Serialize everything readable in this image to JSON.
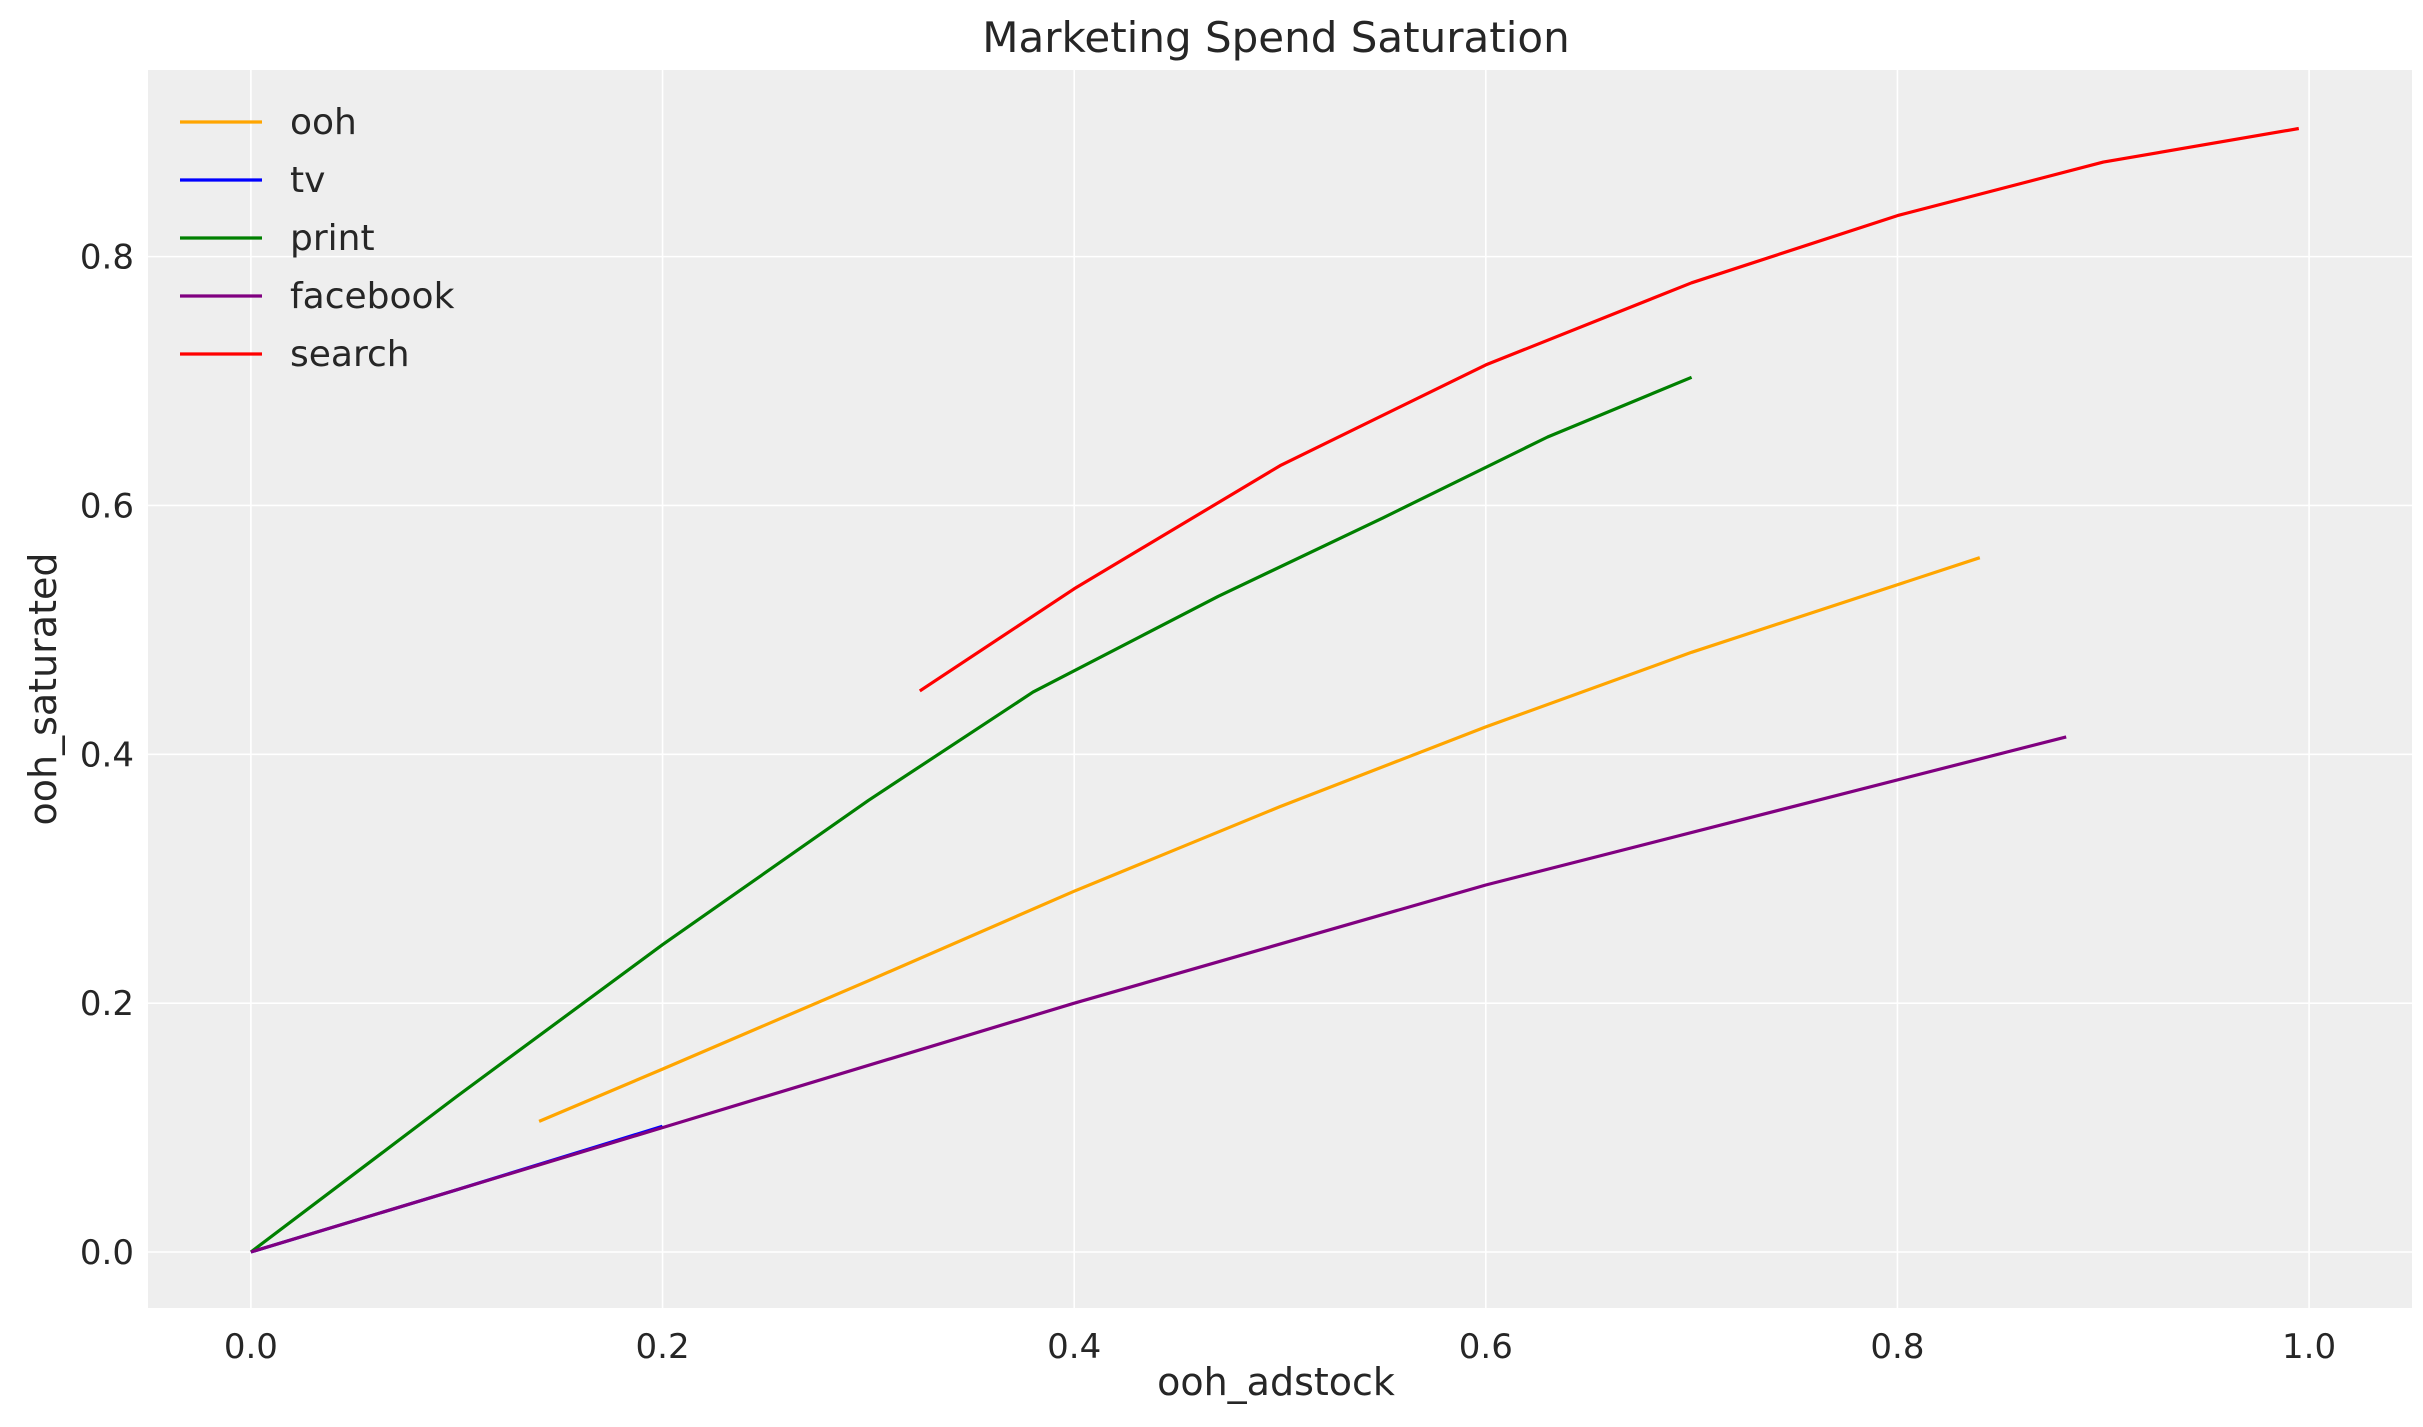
{
  "chart_data": {
    "type": "line",
    "title": "Marketing Spend Saturation",
    "xlabel": "ooh_adstock",
    "ylabel": "ooh_saturated",
    "xlim": [
      -0.05,
      1.05
    ],
    "ylim": [
      -0.045,
      0.95
    ],
    "xticks": [
      0.0,
      0.2,
      0.4,
      0.6,
      0.8,
      1.0
    ],
    "xtick_labels": [
      "0.0",
      "0.2",
      "0.4",
      "0.6",
      "0.8",
      "1.0"
    ],
    "yticks": [
      0.0,
      0.2,
      0.4,
      0.6,
      0.8
    ],
    "ytick_labels": [
      "0.0",
      "0.2",
      "0.4",
      "0.6",
      "0.8"
    ],
    "grid": true,
    "legend_position": "top-left",
    "background_color": "#eeeeee",
    "series": [
      {
        "name": "ooh",
        "color": "#ffa500",
        "x": [
          0.14,
          0.2,
          0.3,
          0.4,
          0.5,
          0.6,
          0.7,
          0.84
        ],
        "y": [
          0.105,
          0.147,
          0.218,
          0.29,
          0.358,
          0.422,
          0.482,
          0.558
        ]
      },
      {
        "name": "tv",
        "color": "#0000ff",
        "x": [
          0.0,
          0.1,
          0.2
        ],
        "y": [
          0.0,
          0.05,
          0.101
        ]
      },
      {
        "name": "print",
        "color": "#008000",
        "x": [
          0.0,
          0.1,
          0.2,
          0.3,
          0.38,
          0.47,
          0.55,
          0.63,
          0.7
        ],
        "y": [
          0.0,
          0.125,
          0.247,
          0.363,
          0.45,
          0.527,
          0.59,
          0.655,
          0.703
        ]
      },
      {
        "name": "facebook",
        "color": "#800080",
        "x": [
          0.0,
          0.2,
          0.4,
          0.6,
          0.882
        ],
        "y": [
          0.0,
          0.1,
          0.2,
          0.295,
          0.414
        ]
      },
      {
        "name": "search",
        "color": "#ff0000",
        "x": [
          0.325,
          0.4,
          0.5,
          0.6,
          0.7,
          0.8,
          0.9,
          0.995
        ],
        "y": [
          0.451,
          0.533,
          0.632,
          0.713,
          0.779,
          0.833,
          0.876,
          0.903
        ]
      }
    ]
  }
}
